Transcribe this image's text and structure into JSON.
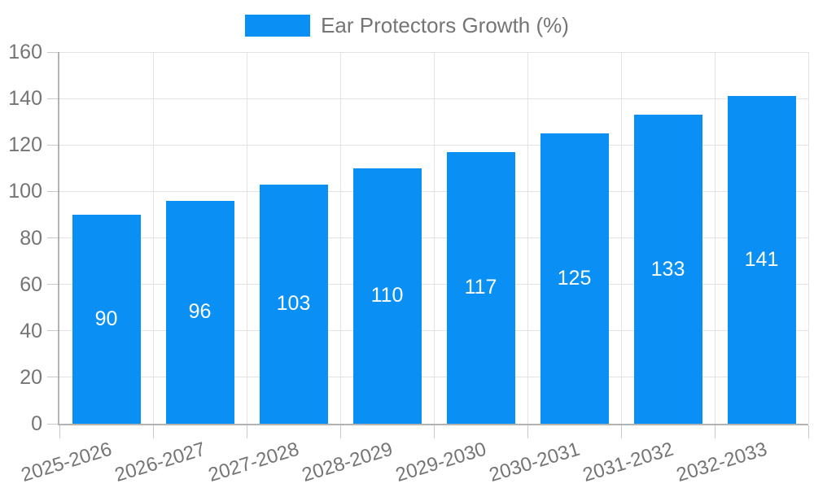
{
  "legend": {
    "label": "Ear Protectors Growth (%)"
  },
  "chart_data": {
    "type": "bar",
    "title": "",
    "series_name": "Ear Protectors Growth (%)",
    "categories": [
      "2025-2026",
      "2026-2027",
      "2027-2028",
      "2028-2029",
      "2029-2030",
      "2030-2031",
      "2031-2032",
      "2032-2033"
    ],
    "values": [
      90,
      96,
      103,
      110,
      117,
      125,
      133,
      141
    ],
    "ylim": [
      0,
      160
    ],
    "yticks": [
      0,
      20,
      40,
      60,
      80,
      100,
      120,
      140,
      160
    ],
    "grid": true,
    "legend_position": "top",
    "bar_labels_shown": true,
    "bar_label_position": "center",
    "colors": {
      "bar": "#0a90f4",
      "bar_label": "#ffffff",
      "axis_text": "#757575",
      "grid_line": "#e3e3e3",
      "axis_line": "#b3b3b3",
      "tick": "#c9c9c9",
      "background": "#ffffff"
    }
  }
}
